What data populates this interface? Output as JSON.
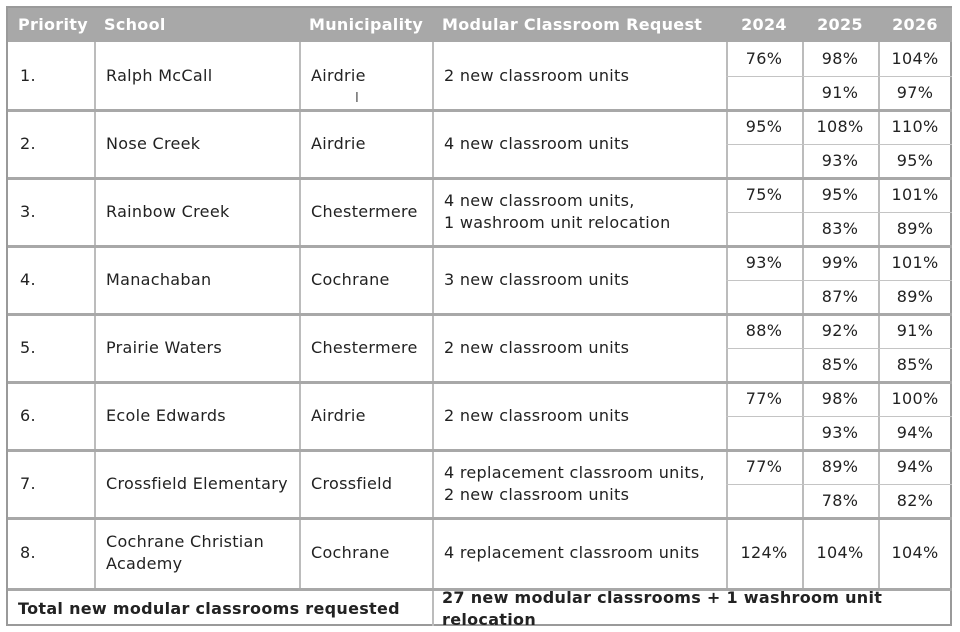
{
  "headers": {
    "priority": "Priority",
    "school": "School",
    "municipality": "Municipality",
    "request": "Modular Classroom Request",
    "y2024": "2024",
    "y2025": "2025",
    "y2026": "2026"
  },
  "rows": [
    {
      "priority": "1.",
      "school": "Ralph McCall",
      "municipality": "Airdrie",
      "request": "2 new classroom units",
      "u2024": "76%",
      "u2025a": "98%",
      "u2026a": "104%",
      "u2025b": "91%",
      "u2026b": "97%"
    },
    {
      "priority": "2.",
      "school": "Nose Creek",
      "municipality": "Airdrie",
      "request": "4 new classroom units",
      "u2024": "95%",
      "u2025a": "108%",
      "u2026a": "110%",
      "u2025b": "93%",
      "u2026b": "95%"
    },
    {
      "priority": "3.",
      "school": "Rainbow Creek",
      "municipality": "Chestermere",
      "request_line1": "4 new classroom units,",
      "request_line2": "1 washroom unit relocation",
      "u2024": "75%",
      "u2025a": "95%",
      "u2026a": "101%",
      "u2025b": "83%",
      "u2026b": "89%"
    },
    {
      "priority": "4.",
      "school": "Manachaban",
      "municipality": "Cochrane",
      "request": "3 new classroom units",
      "u2024": "93%",
      "u2025a": "99%",
      "u2026a": "101%",
      "u2025b": "87%",
      "u2026b": "89%"
    },
    {
      "priority": "5.",
      "school": "Prairie Waters",
      "municipality": "Chestermere",
      "request": "2 new classroom units",
      "u2024": "88%",
      "u2025a": "92%",
      "u2026a": "91%",
      "u2025b": "85%",
      "u2026b": "85%"
    },
    {
      "priority": "6.",
      "school": "Ecole Edwards",
      "municipality": "Airdrie",
      "request": "2 new classroom units",
      "u2024": "77%",
      "u2025a": "98%",
      "u2026a": "100%",
      "u2025b": "93%",
      "u2026b": "94%"
    },
    {
      "priority": "7.",
      "school": "Crossfield Elementary",
      "municipality": "Crossfield",
      "request_line1": "4 replacement classroom units,",
      "request_line2": "2 new classroom units",
      "u2024": "77%",
      "u2025a": "89%",
      "u2026a": "94%",
      "u2025b": "78%",
      "u2026b": "82%"
    },
    {
      "priority": "8.",
      "school_line1": "Cochrane Christian",
      "school_line2": "Academy",
      "municipality": "Cochrane",
      "request": "4 replacement classroom units",
      "u2024": "124%",
      "u2025": "104%",
      "u2026": "104%"
    }
  ],
  "footer": {
    "label": "Total new modular classrooms requested",
    "value": "27 new modular classrooms + 1 washroom unit relocation"
  },
  "icons": {
    "cursor": "text-cursor-icon"
  }
}
